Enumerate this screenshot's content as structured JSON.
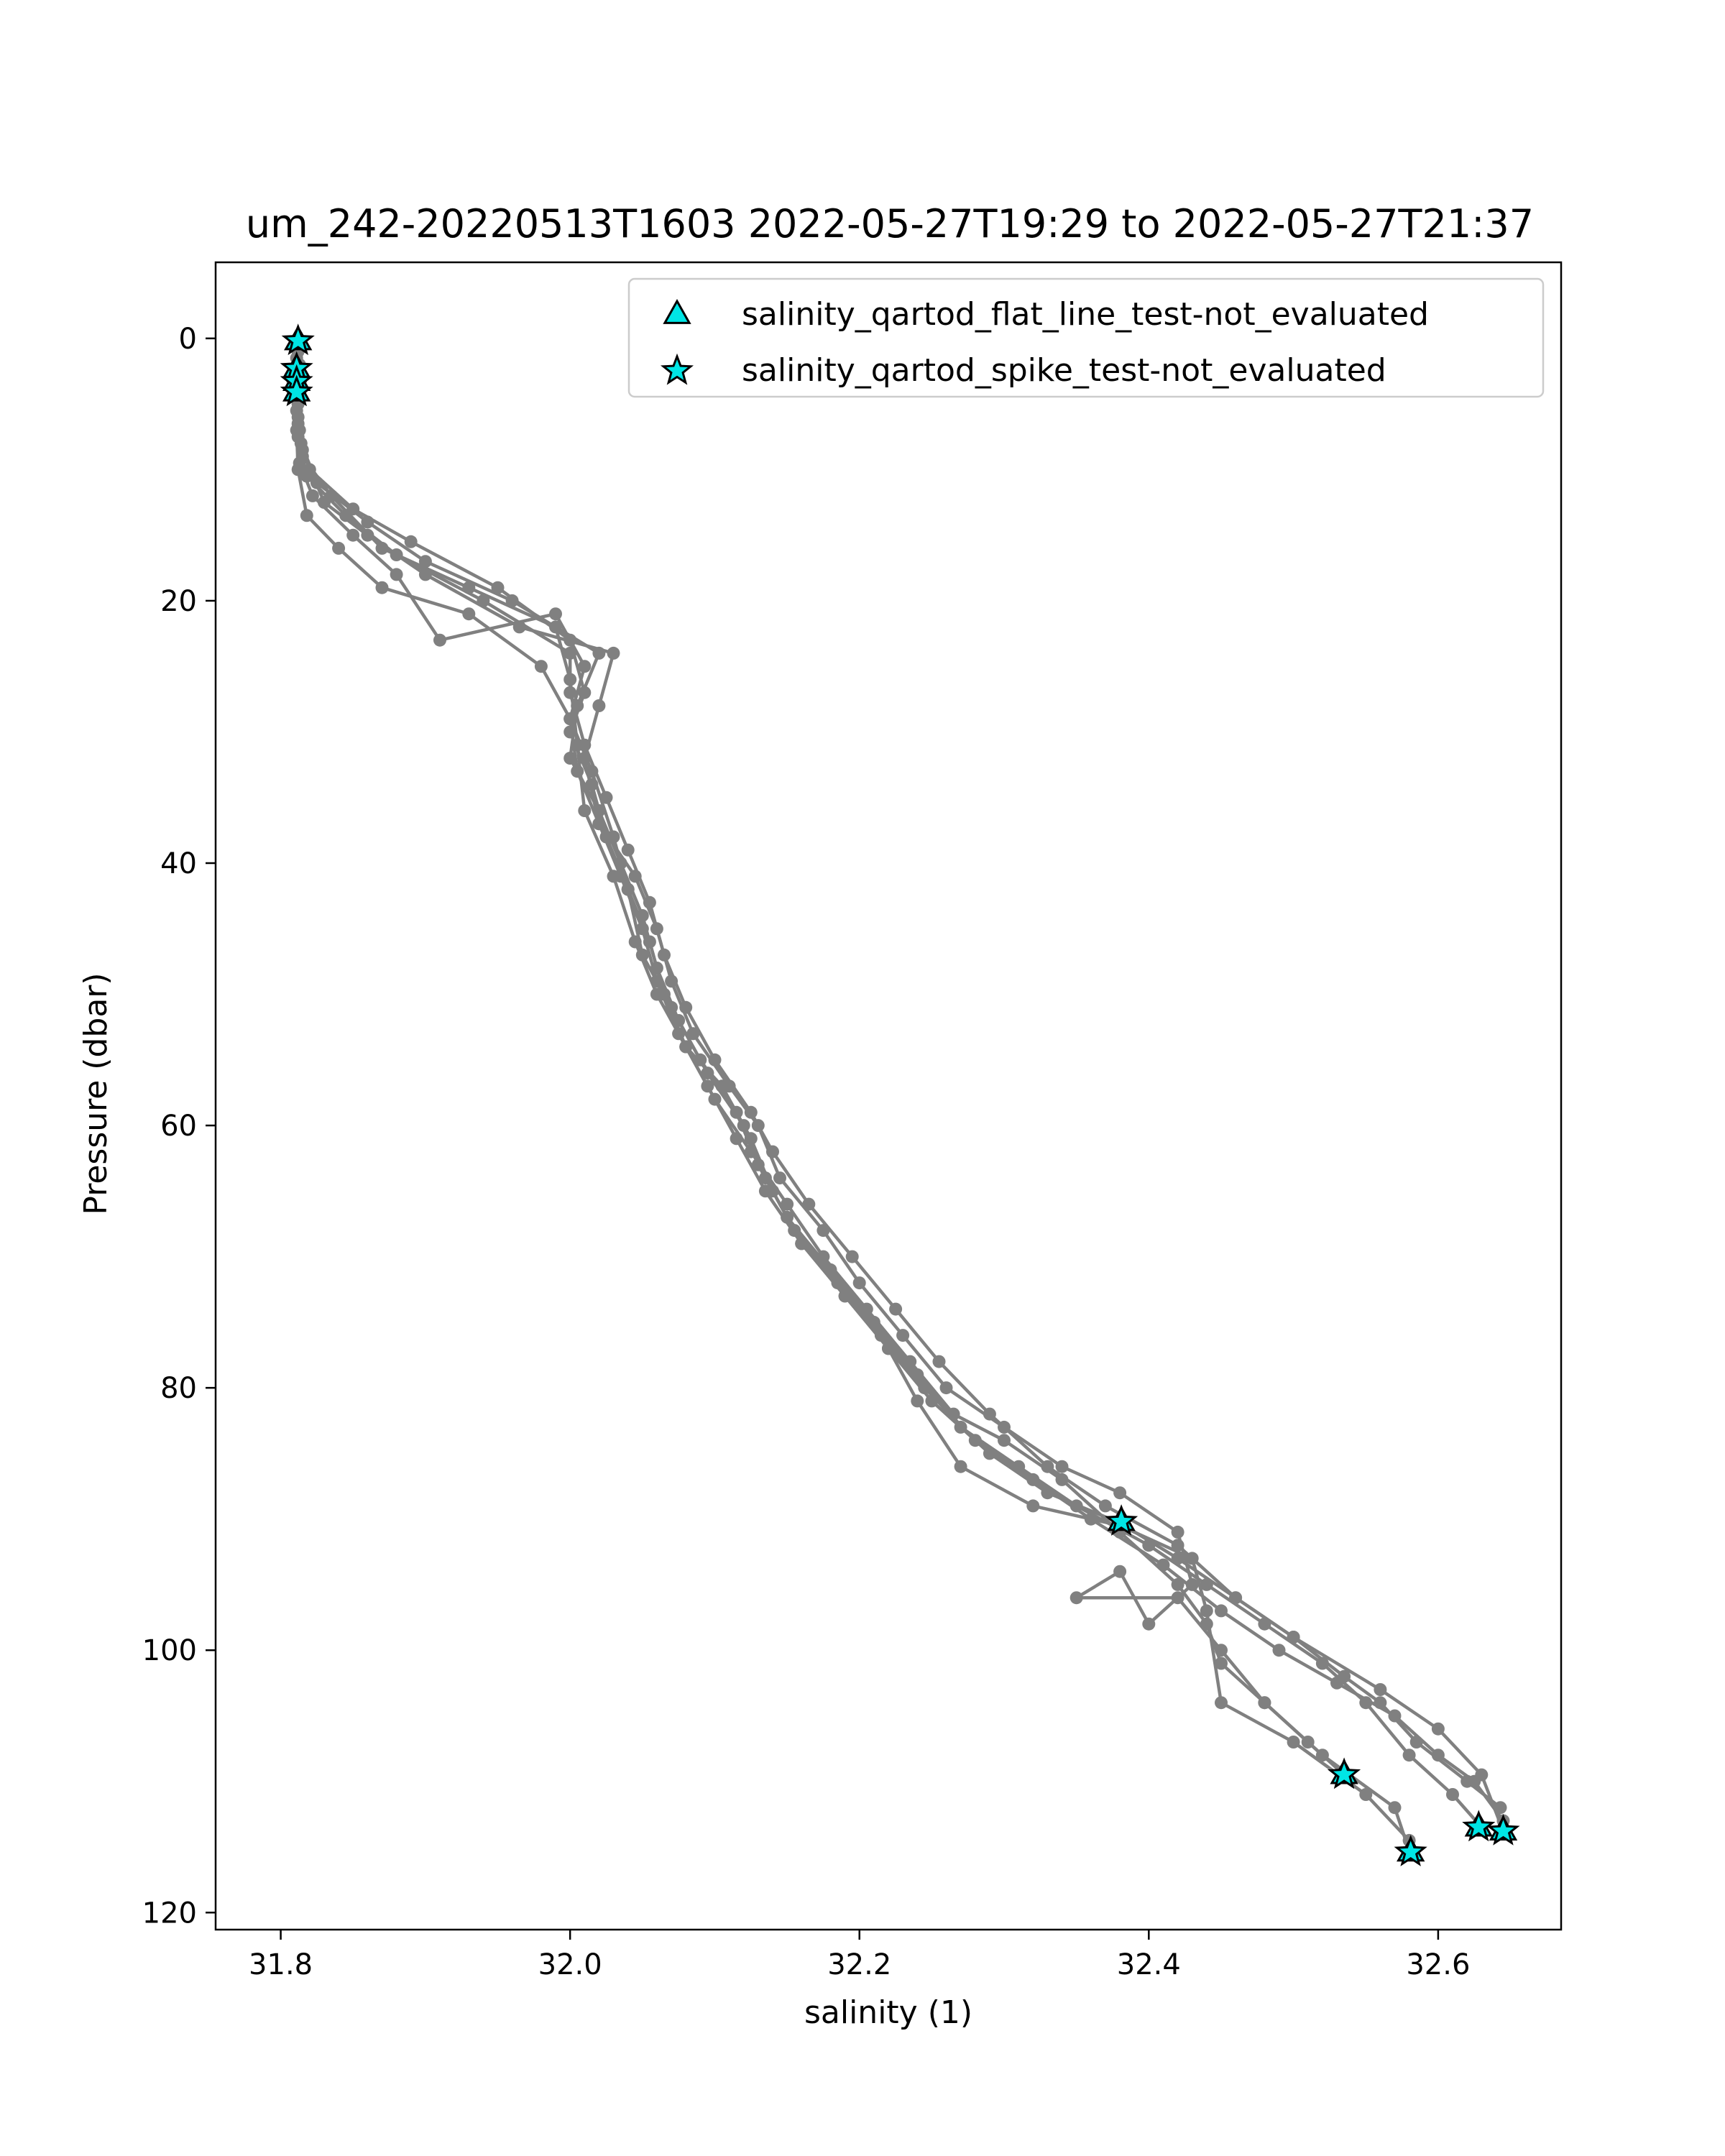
{
  "chart_data": {
    "type": "line",
    "title": "um_242-20220513T1603 2022-05-27T19:29 to 2022-05-27T21:37",
    "xlabel": "salinity (1)",
    "ylabel": "Pressure (dbar)",
    "xlim": [
      31.755,
      32.685
    ],
    "ylim": [
      121.3,
      -5.8
    ],
    "y_inverted": true,
    "grid": false,
    "legend_position": "top-right",
    "x_ticks": [
      31.8,
      32.0,
      32.2,
      32.4,
      32.6
    ],
    "x_tick_labels": [
      "31.8",
      "32.0",
      "32.2",
      "32.4",
      "32.6"
    ],
    "y_ticks": [
      0,
      20,
      40,
      60,
      80,
      100,
      120
    ],
    "y_tick_labels": [
      "0",
      "20",
      "40",
      "60",
      "80",
      "100",
      "120"
    ],
    "profile_color": "#808080",
    "marker_color": "#00e5e5",
    "profiles": [
      [
        [
          31.812,
          0.2
        ],
        [
          31.81,
          3.0
        ],
        [
          31.812,
          6.0
        ],
        [
          31.815,
          9.0
        ],
        [
          31.835,
          12.0
        ],
        [
          31.87,
          16.0
        ],
        [
          31.93,
          19.0
        ],
        [
          31.99,
          22.0
        ],
        [
          32.0,
          26.0
        ],
        [
          32.005,
          31.0
        ],
        [
          32.01,
          36.0
        ],
        [
          32.03,
          41.0
        ],
        [
          32.045,
          46.0
        ],
        [
          32.06,
          50.0
        ],
        [
          32.08,
          54.0
        ],
        [
          32.105,
          57.0
        ],
        [
          32.125,
          61.0
        ],
        [
          32.14,
          65.0
        ],
        [
          32.16,
          69.0
        ],
        [
          32.19,
          73.0
        ],
        [
          32.22,
          77.0
        ],
        [
          32.25,
          81.0
        ],
        [
          32.29,
          85.0
        ],
        [
          32.33,
          88.0
        ],
        [
          32.38,
          90.3
        ],
        [
          32.42,
          93.0
        ],
        [
          32.46,
          96.0
        ],
        [
          32.5,
          99.0
        ],
        [
          32.56,
          103.0
        ],
        [
          32.6,
          106.0
        ],
        [
          32.63,
          109.5
        ],
        [
          32.645,
          113.8
        ]
      ],
      [
        [
          31.81,
          0.5
        ],
        [
          31.811,
          4.0
        ],
        [
          31.813,
          7.0
        ],
        [
          31.82,
          10.0
        ],
        [
          31.85,
          13.0
        ],
        [
          31.89,
          15.5
        ],
        [
          31.95,
          19.0
        ],
        [
          32.0,
          23.0
        ],
        [
          32.01,
          27.0
        ],
        [
          32.0,
          30.0
        ],
        [
          32.015,
          34.0
        ],
        [
          32.025,
          38.0
        ],
        [
          32.04,
          42.0
        ],
        [
          32.05,
          47.0
        ],
        [
          32.07,
          51.0
        ],
        [
          32.09,
          55.0
        ],
        [
          32.115,
          59.0
        ],
        [
          32.13,
          63.0
        ],
        [
          32.15,
          67.0
        ],
        [
          32.18,
          71.0
        ],
        [
          32.21,
          75.0
        ],
        [
          32.24,
          79.0
        ],
        [
          32.27,
          83.0
        ],
        [
          32.31,
          86.0
        ],
        [
          32.35,
          89.0
        ],
        [
          32.4,
          92.0
        ],
        [
          32.44,
          95.0
        ],
        [
          32.48,
          98.0
        ],
        [
          32.52,
          101.0
        ],
        [
          32.55,
          104.0
        ],
        [
          32.58,
          108.0
        ],
        [
          32.61,
          111.0
        ],
        [
          32.63,
          113.5
        ]
      ],
      [
        [
          31.812,
          1.0
        ],
        [
          31.812,
          5.0
        ],
        [
          31.814,
          8.0
        ],
        [
          31.825,
          11.0
        ],
        [
          31.86,
          14.0
        ],
        [
          31.9,
          17.0
        ],
        [
          31.96,
          20.0
        ],
        [
          32.02,
          24.0
        ],
        [
          32.005,
          28.0
        ],
        [
          32.0,
          32.0
        ],
        [
          32.02,
          36.0
        ],
        [
          32.035,
          40.0
        ],
        [
          32.05,
          44.0
        ],
        [
          32.06,
          48.0
        ],
        [
          32.075,
          52.0
        ],
        [
          32.095,
          56.0
        ],
        [
          32.12,
          60.0
        ],
        [
          32.135,
          64.0
        ],
        [
          32.155,
          68.0
        ],
        [
          32.185,
          72.0
        ],
        [
          32.215,
          76.0
        ],
        [
          32.245,
          80.0
        ],
        [
          32.28,
          84.0
        ],
        [
          32.32,
          87.0
        ],
        [
          32.36,
          90.0
        ],
        [
          32.41,
          93.5
        ],
        [
          32.45,
          97.0
        ],
        [
          32.49,
          100.0
        ],
        [
          32.53,
          102.5
        ],
        [
          32.57,
          105.0
        ],
        [
          32.6,
          108.0
        ],
        [
          32.625,
          110.0
        ],
        [
          32.645,
          113.0
        ]
      ],
      [
        [
          31.811,
          1.5
        ],
        [
          31.81,
          4.5
        ],
        [
          31.812,
          7.5
        ],
        [
          31.818,
          10.5
        ],
        [
          31.845,
          13.5
        ],
        [
          31.88,
          16.5
        ],
        [
          31.94,
          20.0
        ],
        [
          32.0,
          24.0
        ],
        [
          32.0,
          27.0
        ],
        [
          32.01,
          31.0
        ],
        [
          32.025,
          35.0
        ],
        [
          32.04,
          39.0
        ],
        [
          32.055,
          43.0
        ],
        [
          32.065,
          47.0
        ],
        [
          32.08,
          51.0
        ],
        [
          32.1,
          55.0
        ],
        [
          32.125,
          59.0
        ],
        [
          32.14,
          62.0
        ],
        [
          32.165,
          66.0
        ],
        [
          32.195,
          70.0
        ],
        [
          32.225,
          74.0
        ],
        [
          32.255,
          78.0
        ],
        [
          32.29,
          82.0
        ],
        [
          32.33,
          86.0
        ],
        [
          32.37,
          89.0
        ],
        [
          32.42,
          92.0
        ],
        [
          32.46,
          96.0
        ],
        [
          32.5,
          99.0
        ],
        [
          32.535,
          102.0
        ],
        [
          32.56,
          104.0
        ],
        [
          32.585,
          107.0
        ],
        [
          32.62,
          110.0
        ],
        [
          32.643,
          112.0
        ]
      ],
      [
        [
          31.813,
          2.0
        ],
        [
          31.811,
          5.5
        ],
        [
          31.815,
          8.5
        ],
        [
          31.83,
          12.5
        ],
        [
          31.86,
          15.0
        ],
        [
          31.9,
          18.0
        ],
        [
          31.965,
          22.0
        ],
        [
          32.03,
          24.0
        ],
        [
          32.02,
          28.0
        ],
        [
          32.01,
          32.0
        ],
        [
          32.02,
          37.0
        ],
        [
          32.045,
          41.0
        ],
        [
          32.06,
          45.0
        ],
        [
          32.07,
          49.0
        ],
        [
          32.085,
          53.0
        ],
        [
          32.11,
          57.0
        ],
        [
          32.13,
          60.0
        ],
        [
          32.145,
          64.0
        ],
        [
          32.175,
          68.0
        ],
        [
          32.2,
          72.0
        ],
        [
          32.23,
          76.0
        ],
        [
          32.26,
          80.0
        ],
        [
          32.3,
          83.0
        ],
        [
          32.34,
          86.0
        ],
        [
          32.38,
          88.0
        ],
        [
          32.42,
          91.0
        ],
        [
          32.43,
          95.0
        ],
        [
          32.4,
          98.0
        ],
        [
          32.38,
          94.0
        ],
        [
          32.35,
          96.0
        ],
        [
          32.42,
          96.0
        ],
        [
          32.45,
          100.0
        ],
        [
          32.48,
          104.0
        ],
        [
          32.52,
          108.0
        ],
        [
          32.57,
          112.0
        ],
        [
          32.58,
          115.3
        ]
      ],
      [
        [
          31.812,
          2.5
        ],
        [
          31.812,
          6.5
        ],
        [
          31.813,
          9.5
        ],
        [
          31.822,
          12.0
        ],
        [
          31.85,
          15.0
        ],
        [
          31.88,
          18.0
        ],
        [
          31.91,
          23.0
        ],
        [
          31.99,
          21.0
        ],
        [
          32.01,
          25.0
        ],
        [
          32.0,
          29.0
        ],
        [
          32.015,
          33.0
        ],
        [
          32.03,
          38.0
        ],
        [
          32.04,
          42.0
        ],
        [
          32.055,
          46.0
        ],
        [
          32.065,
          50.0
        ],
        [
          32.08,
          54.0
        ],
        [
          32.1,
          58.0
        ],
        [
          32.125,
          62.0
        ],
        [
          32.15,
          66.0
        ],
        [
          32.175,
          70.0
        ],
        [
          32.205,
          74.0
        ],
        [
          32.235,
          78.0
        ],
        [
          32.265,
          82.0
        ],
        [
          32.3,
          84.0
        ],
        [
          32.34,
          87.0
        ],
        [
          32.38,
          91.0
        ],
        [
          32.42,
          95.0
        ],
        [
          32.44,
          98.0
        ],
        [
          32.45,
          101.0
        ],
        [
          32.48,
          104.0
        ],
        [
          32.51,
          107.0
        ],
        [
          32.535,
          109.5
        ]
      ],
      [
        [
          31.81,
          3.5
        ],
        [
          31.811,
          7.0
        ],
        [
          31.812,
          10.0
        ],
        [
          31.818,
          13.5
        ],
        [
          31.84,
          16.0
        ],
        [
          31.87,
          19.0
        ],
        [
          31.93,
          21.0
        ],
        [
          31.98,
          25.0
        ],
        [
          32.0,
          29.0
        ],
        [
          32.005,
          33.0
        ],
        [
          32.02,
          37.0
        ],
        [
          32.035,
          41.0
        ],
        [
          32.05,
          45.0
        ],
        [
          32.06,
          49.0
        ],
        [
          32.075,
          53.0
        ],
        [
          32.095,
          57.0
        ],
        [
          32.115,
          61.0
        ],
        [
          32.135,
          65.0
        ],
        [
          32.16,
          69.0
        ],
        [
          32.19,
          73.0
        ],
        [
          32.22,
          77.0
        ],
        [
          32.24,
          81.0
        ],
        [
          32.27,
          86.0
        ],
        [
          32.32,
          89.0
        ],
        [
          32.38,
          90.5
        ],
        [
          32.43,
          93.0
        ],
        [
          32.44,
          97.0
        ],
        [
          32.45,
          104.0
        ],
        [
          32.5,
          107.0
        ],
        [
          32.55,
          111.0
        ],
        [
          32.58,
          114.5
        ]
      ]
    ],
    "markers": {
      "flat_line_test": [
        [
          31.812,
          0.2
        ],
        [
          31.811,
          2.3
        ],
        [
          31.811,
          3.3
        ],
        [
          31.811,
          4.1
        ],
        [
          32.381,
          90.2
        ],
        [
          32.535,
          109.5
        ],
        [
          32.581,
          115.4
        ],
        [
          32.628,
          113.5
        ],
        [
          32.645,
          113.8
        ]
      ],
      "spike_test": [
        [
          31.812,
          0.2
        ],
        [
          31.811,
          2.3
        ],
        [
          31.811,
          3.3
        ],
        [
          31.811,
          4.1
        ],
        [
          32.381,
          90.2
        ],
        [
          32.535,
          109.5
        ],
        [
          32.581,
          115.4
        ],
        [
          32.628,
          113.5
        ],
        [
          32.645,
          113.8
        ]
      ]
    },
    "legend": [
      {
        "label": "salinity_qartod_flat_line_test-not_evaluated",
        "marker": "triangle-up"
      },
      {
        "label": "salinity_qartod_spike_test-not_evaluated",
        "marker": "star"
      }
    ]
  }
}
